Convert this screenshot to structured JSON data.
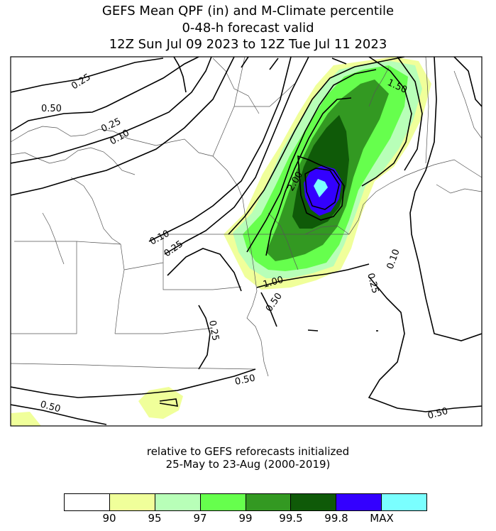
{
  "title": {
    "line1": "GEFS Mean QPF (in) and M-Climate percentile",
    "line2": "0-48-h forecast valid",
    "line3": "12Z Sun Jul 09 2023  to  12Z Tue Jul 11 2023"
  },
  "subtitle": {
    "line1": "relative to GEFS reforecasts initialized",
    "line2": "25-May to 23-Aug (2000-2019)"
  },
  "contour_labels": [
    "0.25",
    "0.50",
    "0.25",
    "0.10",
    "0.10",
    "0.25",
    "1.50",
    "2.00",
    "1.00",
    "0.50",
    "0.10",
    "0.25",
    "0.25",
    "0.50",
    "0.50",
    "0.50"
  ],
  "colorbar": {
    "colors": [
      "#ffffff",
      "#f0ff9a",
      "#b8ffb8",
      "#66ff4d",
      "#339922",
      "#0f5a08",
      "#3300ff",
      "#7affff"
    ],
    "ticks": [
      "90",
      "95",
      "97",
      "99",
      "99.5",
      "99.8",
      "MAX"
    ]
  }
}
